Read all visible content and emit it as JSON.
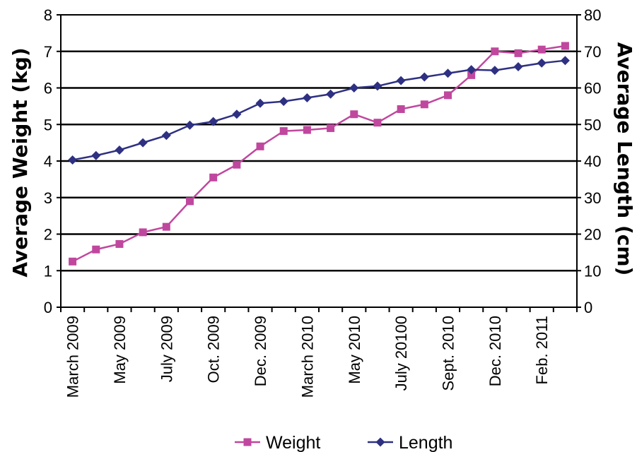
{
  "chart_data": {
    "type": "line",
    "categories": [
      "March 2009",
      "",
      "May 2009",
      "",
      "July 2009",
      "",
      "Oct. 2009",
      "",
      "Dec. 2009",
      "",
      "March 2010",
      "",
      "May 2010",
      "",
      "July 20100",
      "",
      "Sept. 2010",
      "",
      "Dec. 2010",
      "",
      "Feb. 2011",
      ""
    ],
    "series": [
      {
        "name": "Weight",
        "axis": "left",
        "color": "#c0479e",
        "marker": "square",
        "values": [
          1.25,
          1.58,
          1.73,
          2.05,
          2.2,
          2.9,
          3.55,
          3.9,
          4.4,
          4.82,
          4.85,
          4.9,
          5.28,
          5.05,
          5.42,
          5.55,
          5.8,
          6.35,
          7.0,
          6.95,
          7.05,
          7.15
        ]
      },
      {
        "name": "Length",
        "axis": "right",
        "color": "#2e3082",
        "marker": "diamond",
        "values": [
          40.3,
          41.5,
          43.0,
          45.0,
          47.0,
          49.8,
          50.8,
          52.8,
          55.8,
          56.3,
          57.3,
          58.3,
          60.0,
          60.5,
          62.0,
          63.0,
          64.0,
          65.0,
          64.8,
          65.8,
          66.8,
          67.5
        ]
      }
    ],
    "ylabel": "Average Weight (kg)",
    "ylabel_right": "Average Length (cm)",
    "ylim": [
      0,
      8
    ],
    "ylim_right": [
      0,
      80
    ],
    "yticks": [
      "0",
      "1",
      "2",
      "3",
      "4",
      "5",
      "6",
      "7",
      "8"
    ],
    "yticks_right": [
      "0",
      "10",
      "20",
      "30",
      "40",
      "50",
      "60",
      "70",
      "80"
    ],
    "grid": true,
    "legend_position": "bottom"
  }
}
